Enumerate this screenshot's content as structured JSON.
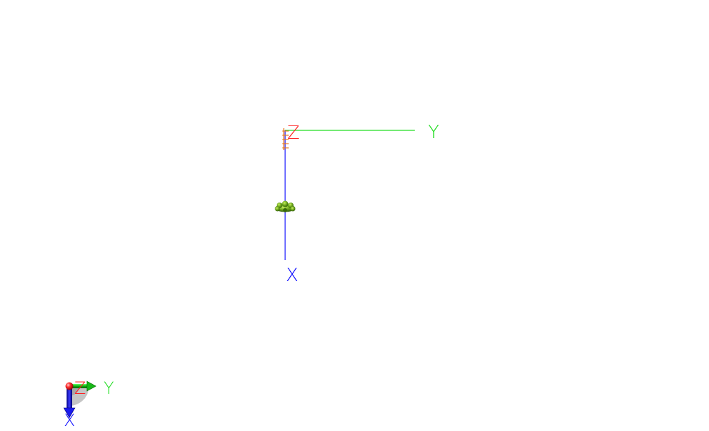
{
  "scene": {
    "background": "#ffffff",
    "main_axes": {
      "x": {
        "label": "X",
        "color": "#1010ff"
      },
      "y": {
        "label": "Y",
        "color": "#22dd22"
      },
      "z": {
        "label": "Z",
        "color": "#ff2020"
      }
    },
    "origin_ticks_color": "#e87820",
    "model": {
      "name": "green-molecule-model",
      "color": "#6fa81e"
    }
  },
  "orientation_gizmo": {
    "x": {
      "label": "X",
      "color": "#1010ff"
    },
    "y": {
      "label": "Y",
      "color": "#22dd22"
    },
    "z": {
      "label": "Z",
      "color": "#ff2020"
    },
    "ball_color": "#ff3030",
    "shadow_color": "#bbbbbb"
  }
}
